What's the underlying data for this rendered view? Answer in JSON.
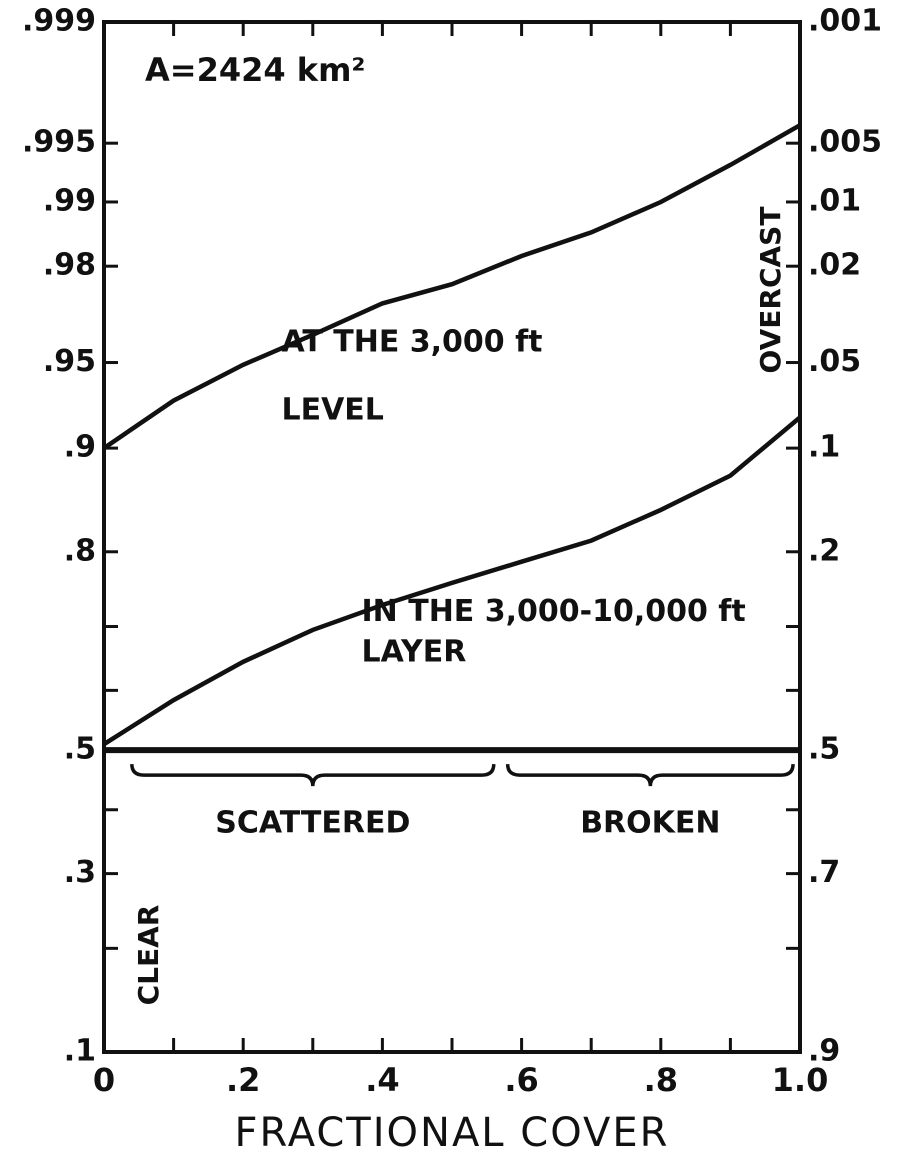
{
  "chart_data": {
    "type": "line",
    "yscale": "probit",
    "annotation": "A=2424 km²",
    "x_label": "FRACTIONAL COVER",
    "left_note": "CLEAR",
    "right_note": "OVERCAST",
    "xlim": [
      0,
      1.0
    ],
    "xticks": [
      0,
      {
        "value": 0.2,
        "label": ".2"
      },
      {
        "value": 0.4,
        "label": ".4"
      },
      {
        "value": 0.6,
        "label": ".6"
      },
      {
        "value": 0.8,
        "label": ".8"
      },
      {
        "value": 1.0,
        "label": "1.0"
      }
    ],
    "xminor_ticks": [
      0.1,
      0.3,
      0.5,
      0.7,
      0.9
    ],
    "ylim": [
      0.1,
      0.999
    ],
    "yticks": [
      {
        "value": 0.1,
        "label": ".1"
      },
      {
        "value": 0.3,
        "label": ".3"
      },
      {
        "value": 0.5,
        "label": ".5"
      },
      {
        "value": 0.8,
        "label": ".8"
      },
      {
        "value": 0.9,
        "label": ".9"
      },
      {
        "value": 0.95,
        "label": ".95"
      },
      {
        "value": 0.98,
        "label": ".98"
      },
      {
        "value": 0.99,
        "label": ".99"
      },
      {
        "value": 0.995,
        "label": ".995"
      },
      {
        "value": 0.999,
        "label": ".999"
      }
    ],
    "yminor_ticks": [
      0.2,
      0.4,
      0.6,
      0.7
    ],
    "y2lim": [
      0.9,
      0.001
    ],
    "y2ticks": [
      {
        "value": 0.9,
        "label": ".9"
      },
      {
        "value": 0.7,
        "label": ".7"
      },
      {
        "value": 0.5,
        "label": ".5"
      },
      {
        "value": 0.2,
        "label": ".2"
      },
      {
        "value": 0.1,
        "label": ".1"
      },
      {
        "value": 0.05,
        "label": ".05"
      },
      {
        "value": 0.02,
        "label": ".02"
      },
      {
        "value": 0.01,
        "label": ".01"
      },
      {
        "value": 0.005,
        "label": ".005"
      },
      {
        "value": 0.001,
        "label": ".001"
      }
    ],
    "y2minor_ticks": [
      0.8,
      0.6,
      0.4,
      0.3
    ],
    "hline": 0.5,
    "x": [
      0,
      0.1,
      0.2,
      0.3,
      0.4,
      0.5,
      0.6,
      0.7,
      0.8,
      0.9,
      1.0
    ],
    "series": [
      {
        "label": [
          "AT THE 3,000 ft",
          "LEVEL"
        ],
        "color": "#111111",
        "values": [
          0.9,
          0.931,
          0.949,
          0.961,
          0.971,
          0.976,
          0.982,
          0.986,
          0.99,
          0.9935,
          0.996
        ]
      },
      {
        "label": [
          "IN THE 3,000-10,000 ft",
          "LAYER"
        ],
        "color": "#111111",
        "values": [
          0.51,
          0.584,
          0.646,
          0.695,
          0.731,
          0.761,
          0.788,
          0.813,
          0.846,
          0.878,
          0.921
        ]
      }
    ],
    "regions": [
      {
        "label": "SCATTERED",
        "x": [
          0.04,
          0.56
        ]
      },
      {
        "label": "BROKEN",
        "x": [
          0.58,
          0.99
        ]
      }
    ]
  }
}
